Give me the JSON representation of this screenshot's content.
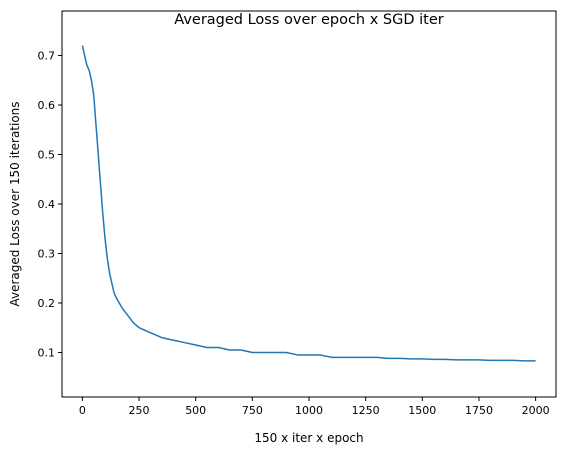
{
  "chart_data": {
    "type": "line",
    "title": "Averaged Loss over epoch x SGD iter",
    "xlabel": "150 x iter x epoch",
    "ylabel": "Averaged Loss over 150 iterations",
    "xlim": [
      -90,
      2090
    ],
    "ylim": [
      0.01,
      0.79
    ],
    "xticks": [
      0,
      250,
      500,
      750,
      1000,
      1250,
      1500,
      1750,
      2000
    ],
    "yticks": [
      0.1,
      0.2,
      0.3,
      0.4,
      0.5,
      0.6,
      0.7
    ],
    "grid": false,
    "legend": "none",
    "series": [
      {
        "color": "#1f77b4",
        "x": [
          0,
          10,
          20,
          30,
          40,
          50,
          60,
          70,
          80,
          90,
          100,
          110,
          120,
          130,
          140,
          150,
          175,
          200,
          225,
          250,
          300,
          350,
          400,
          450,
          500,
          550,
          600,
          650,
          700,
          750,
          800,
          850,
          900,
          950,
          1000,
          1050,
          1100,
          1150,
          1200,
          1250,
          1300,
          1350,
          1400,
          1450,
          1500,
          1550,
          1600,
          1650,
          1700,
          1750,
          1800,
          1850,
          1900,
          1950,
          2000
        ],
        "y": [
          0.72,
          0.7,
          0.68,
          0.67,
          0.65,
          0.62,
          0.56,
          0.5,
          0.44,
          0.38,
          0.33,
          0.29,
          0.26,
          0.24,
          0.22,
          0.21,
          0.19,
          0.175,
          0.16,
          0.15,
          0.14,
          0.13,
          0.125,
          0.12,
          0.115,
          0.11,
          0.11,
          0.105,
          0.105,
          0.1,
          0.1,
          0.1,
          0.1,
          0.095,
          0.095,
          0.095,
          0.09,
          0.09,
          0.09,
          0.09,
          0.09,
          0.088,
          0.088,
          0.087,
          0.087,
          0.086,
          0.086,
          0.085,
          0.085,
          0.085,
          0.084,
          0.084,
          0.084,
          0.083,
          0.083
        ]
      }
    ]
  }
}
